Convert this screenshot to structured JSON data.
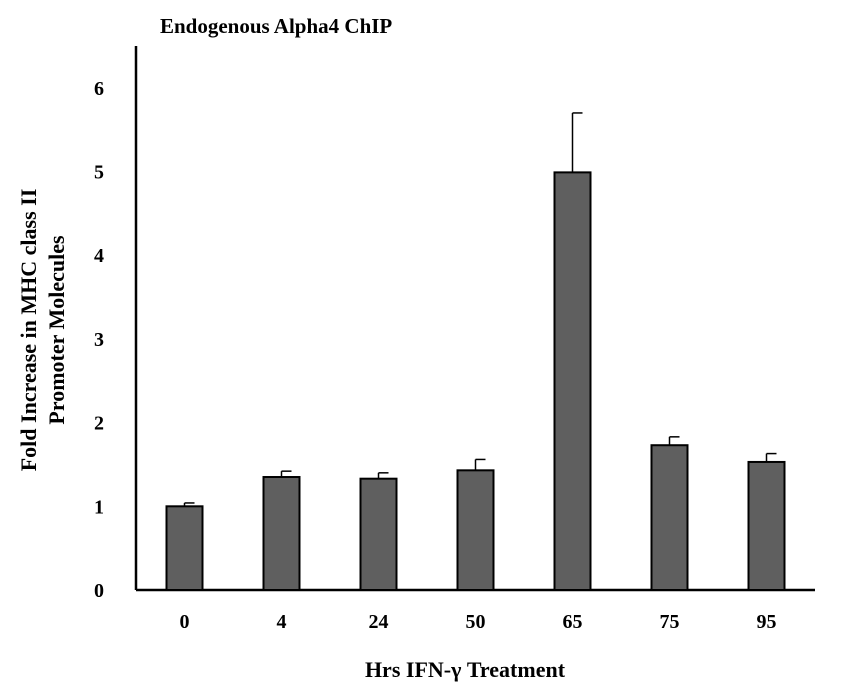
{
  "chart_data": {
    "type": "bar",
    "title": "Endogenous Alpha4 ChIP",
    "xlabel": "Hrs IFN-γ Treatment",
    "ylabel_lines": [
      "Fold Increase in MHC class II",
      "Promoter Molecules"
    ],
    "categories": [
      "0",
      "4",
      "24",
      "50",
      "65",
      "75",
      "95"
    ],
    "values": [
      1.0,
      1.35,
      1.33,
      1.43,
      4.99,
      1.73,
      1.53
    ],
    "errors": [
      0.04,
      0.07,
      0.07,
      0.13,
      0.71,
      0.1,
      0.1
    ],
    "ylim": [
      0,
      6.5
    ],
    "yticks": [
      "0",
      "1",
      "2",
      "3",
      "4",
      "5",
      "6"
    ],
    "bar_color": "#5f5f5f",
    "grid": false,
    "legend": "none"
  }
}
